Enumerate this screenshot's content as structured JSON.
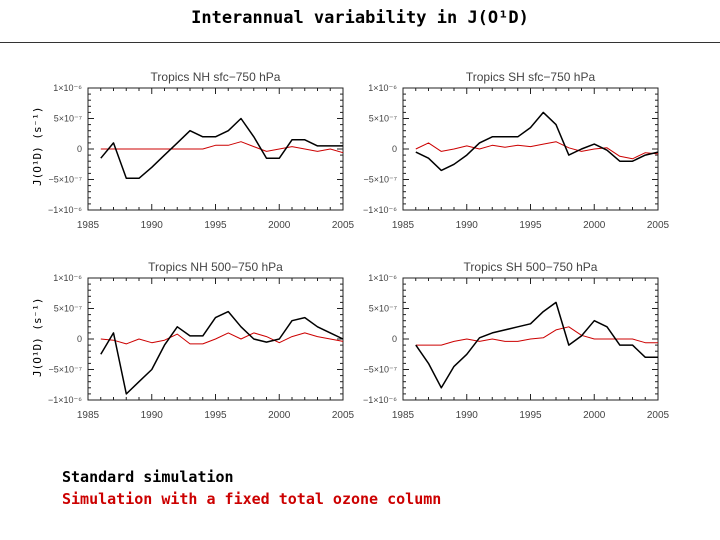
{
  "header": {
    "title": "Interannual variability in J(O¹D)"
  },
  "yaxis_label": "J(O¹D) (s⁻¹)",
  "legend": {
    "standard": "Standard simulation",
    "fixed": "Simulation with a fixed total ozone column"
  },
  "colors": {
    "standard": "#000000",
    "fixed": "#cc0000"
  },
  "chart_data": [
    {
      "type": "line",
      "title": "Tropics  NH sfc−750 hPa",
      "xlim": [
        1985,
        2005
      ],
      "ylim": [
        -1e-06,
        1e-06
      ],
      "xticks": [
        "1985",
        "1990",
        "1995",
        "2000",
        "2005"
      ],
      "yticks": [
        "1×10⁻⁶",
        "5×10⁻⁷",
        "0",
        "−5×10⁻⁷",
        "−1×10⁻⁶"
      ],
      "series": [
        {
          "name": "Standard simulation",
          "x": [
            1986,
            1987,
            1988,
            1989,
            1990,
            1991,
            1992,
            1993,
            1994,
            1995,
            1996,
            1997,
            1998,
            1999,
            2000,
            2001,
            2002,
            2003,
            2004,
            2005
          ],
          "y": [
            -1.5e-07,
            1e-07,
            -4.8e-07,
            -4.8e-07,
            -3e-07,
            -1e-07,
            1e-07,
            3e-07,
            2e-07,
            2e-07,
            3e-07,
            5e-07,
            2e-07,
            -1.5e-07,
            -1.5e-07,
            1.5e-07,
            1.5e-07,
            5e-08,
            5e-08,
            5e-08
          ]
        },
        {
          "name": "Simulation with a fixed total ozone column",
          "x": [
            1986,
            1987,
            1988,
            1989,
            1990,
            1991,
            1992,
            1993,
            1994,
            1995,
            1996,
            1997,
            1998,
            1999,
            2000,
            2001,
            2002,
            2003,
            2004,
            2005
          ],
          "y": [
            0,
            0,
            0,
            0,
            0,
            0,
            0,
            0,
            0,
            6e-08,
            6e-08,
            1.2e-07,
            4e-08,
            -4e-08,
            0,
            4e-08,
            0,
            -4e-08,
            0,
            -6e-08
          ]
        }
      ]
    },
    {
      "type": "line",
      "title": "Tropics  SH sfc−750 hPa",
      "xlim": [
        1985,
        2005
      ],
      "ylim": [
        -1e-06,
        1e-06
      ],
      "xticks": [
        "1985",
        "1990",
        "1995",
        "2000",
        "2005"
      ],
      "yticks": [
        "1×10⁻⁶",
        "5×10⁻⁷",
        "0",
        "−5×10⁻⁷",
        "−1×10⁻⁶"
      ],
      "series": [
        {
          "name": "Standard simulation",
          "x": [
            1986,
            1987,
            1988,
            1989,
            1990,
            1991,
            1992,
            1993,
            1994,
            1995,
            1996,
            1997,
            1998,
            1999,
            2000,
            2001,
            2002,
            2003,
            2004,
            2005
          ],
          "y": [
            -5e-08,
            -1.5e-07,
            -3.5e-07,
            -2.5e-07,
            -1e-07,
            1e-07,
            2e-07,
            2e-07,
            2e-07,
            3.5e-07,
            6e-07,
            4e-07,
            -1e-07,
            0,
            8e-08,
            -2e-08,
            -2e-07,
            -2e-07,
            -1e-07,
            -5e-08
          ]
        },
        {
          "name": "Simulation with a fixed total ozone column",
          "x": [
            1986,
            1987,
            1988,
            1989,
            1990,
            1991,
            1992,
            1993,
            1994,
            1995,
            1996,
            1997,
            1998,
            1999,
            2000,
            2001,
            2002,
            2003,
            2004,
            2005
          ],
          "y": [
            0,
            1e-07,
            -4e-08,
            0,
            5e-08,
            0,
            6e-08,
            3e-08,
            6e-08,
            4e-08,
            8e-08,
            1.2e-07,
            2e-08,
            -4e-08,
            0,
            2e-08,
            -1.2e-07,
            -1.6e-07,
            -6e-08,
            -8e-08
          ]
        }
      ]
    },
    {
      "type": "line",
      "title": "Tropics  NH 500−750 hPa",
      "xlim": [
        1985,
        2005
      ],
      "ylim": [
        -1e-06,
        1e-06
      ],
      "xticks": [
        "1985",
        "1990",
        "1995",
        "2000",
        "2005"
      ],
      "yticks": [
        "1×10⁻⁶",
        "5×10⁻⁷",
        "0",
        "−5×10⁻⁷",
        "−1×10⁻⁶"
      ],
      "series": [
        {
          "name": "Standard simulation",
          "x": [
            1986,
            1987,
            1988,
            1989,
            1990,
            1991,
            1992,
            1993,
            1994,
            1995,
            1996,
            1997,
            1998,
            1999,
            2000,
            2001,
            2002,
            2003,
            2004,
            2005
          ],
          "y": [
            -2.5e-07,
            1e-07,
            -9e-07,
            -7e-07,
            -5e-07,
            -1e-07,
            2e-07,
            5e-08,
            5e-08,
            3.5e-07,
            4.5e-07,
            2e-07,
            0,
            -5e-08,
            0,
            3e-07,
            3.5e-07,
            2e-07,
            1e-07,
            0
          ]
        },
        {
          "name": "Simulation with a fixed total ozone column",
          "x": [
            1986,
            1987,
            1988,
            1989,
            1990,
            1991,
            1992,
            1993,
            1994,
            1995,
            1996,
            1997,
            1998,
            1999,
            2000,
            2001,
            2002,
            2003,
            2004,
            2005
          ],
          "y": [
            0,
            -2e-08,
            -8e-08,
            0,
            -6e-08,
            -2e-08,
            8e-08,
            -8e-08,
            -8e-08,
            0,
            1e-07,
            0,
            1e-07,
            4e-08,
            -6e-08,
            4e-08,
            1e-07,
            4e-08,
            0,
            -4e-08
          ]
        }
      ]
    },
    {
      "type": "line",
      "title": "Tropics  SH 500−750 hPa",
      "xlim": [
        1985,
        2005
      ],
      "ylim": [
        -1e-06,
        1e-06
      ],
      "xticks": [
        "1985",
        "1990",
        "1995",
        "2000",
        "2005"
      ],
      "yticks": [
        "1×10⁻⁶",
        "5×10⁻⁷",
        "0",
        "−5×10⁻⁷",
        "−1×10⁻⁶"
      ],
      "series": [
        {
          "name": "Standard simulation",
          "x": [
            1986,
            1987,
            1988,
            1989,
            1990,
            1991,
            1992,
            1993,
            1994,
            1995,
            1996,
            1997,
            1998,
            1999,
            2000,
            2001,
            2002,
            2003,
            2004,
            2005
          ],
          "y": [
            -1e-07,
            -4e-07,
            -8e-07,
            -4.5e-07,
            -2.5e-07,
            2e-08,
            1e-07,
            1.5e-07,
            2e-07,
            2.5e-07,
            4.5e-07,
            6e-07,
            -1e-07,
            5e-08,
            3e-07,
            2e-07,
            -1e-07,
            -1e-07,
            -3e-07,
            -3e-07
          ]
        },
        {
          "name": "Simulation with a fixed total ozone column",
          "x": [
            1986,
            1987,
            1988,
            1989,
            1990,
            1991,
            1992,
            1993,
            1994,
            1995,
            1996,
            1997,
            1998,
            1999,
            2000,
            2001,
            2002,
            2003,
            2004,
            2005
          ],
          "y": [
            -1e-07,
            -1e-07,
            -1e-07,
            -4e-08,
            0,
            -4e-08,
            0,
            -4e-08,
            -4e-08,
            0,
            2e-08,
            1.5e-07,
            2e-07,
            6e-08,
            0,
            0,
            0,
            0,
            -6e-08,
            -6e-08
          ]
        }
      ]
    }
  ]
}
